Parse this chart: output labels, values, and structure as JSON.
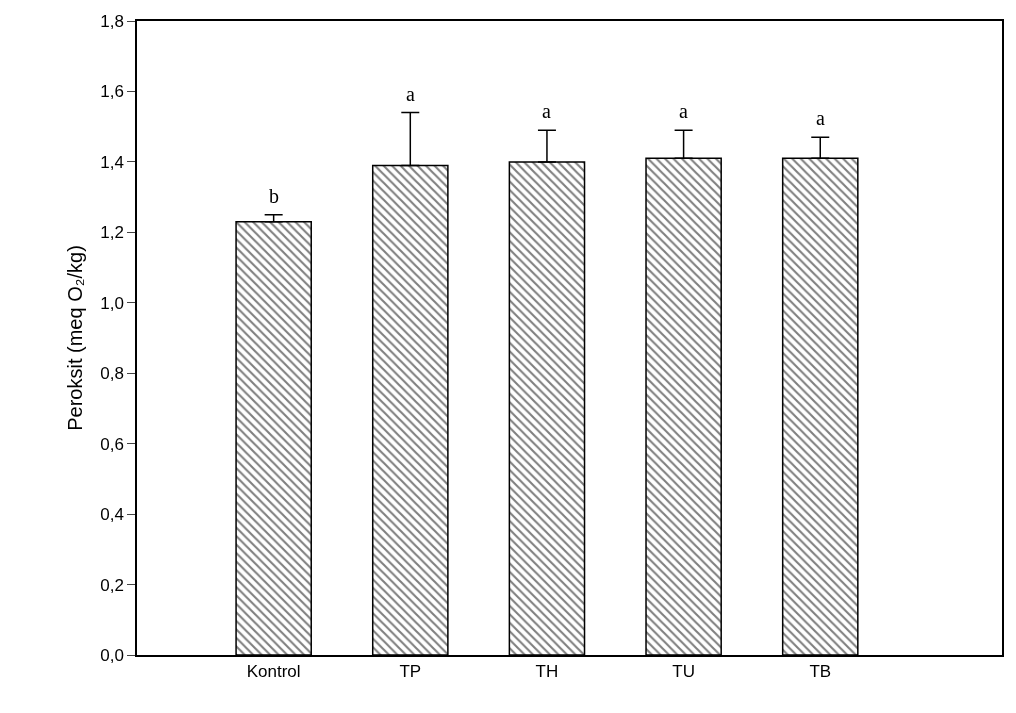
{
  "chart_data": {
    "type": "bar",
    "ylabel": "Peroksit (meq O₂/kg)",
    "categories": [
      "Kontrol",
      "TP",
      "TH",
      "TU",
      "TB"
    ],
    "values": [
      1.23,
      1.39,
      1.4,
      1.41,
      1.41
    ],
    "errors": [
      [
        1.23,
        1.25
      ],
      [
        1.39,
        1.54
      ],
      [
        1.4,
        1.49
      ],
      [
        1.41,
        1.49
      ],
      [
        1.41,
        1.47
      ]
    ],
    "color": "#000000",
    "ylim": [
      0,
      1.8
    ],
    "yticks": [
      {
        "value": 0,
        "label": "0,0"
      },
      {
        "value": 0.2,
        "label": "0,2"
      },
      {
        "value": 0.4,
        "label": "0,4"
      },
      {
        "value": 0.6,
        "label": "0,6"
      },
      {
        "value": 0.8,
        "label": "0,8"
      },
      {
        "value": 1.0,
        "label": "1,0"
      },
      {
        "value": 1.2,
        "label": "1,2"
      },
      {
        "value": 1.4,
        "label": "1,4"
      },
      {
        "value": 1.6,
        "label": "1,6"
      },
      {
        "value": 1.8,
        "label": "1,8"
      }
    ],
    "annotations": [
      {
        "text": "b",
        "x": "Kontrol",
        "y": 1.25
      },
      {
        "text": "a",
        "x": "TP",
        "y": 1.54
      },
      {
        "text": "a",
        "x": "TH",
        "y": 1.49
      },
      {
        "text": "a",
        "x": "TU",
        "y": 1.49
      },
      {
        "text": "a",
        "x": "TB",
        "y": 1.47
      }
    ]
  }
}
